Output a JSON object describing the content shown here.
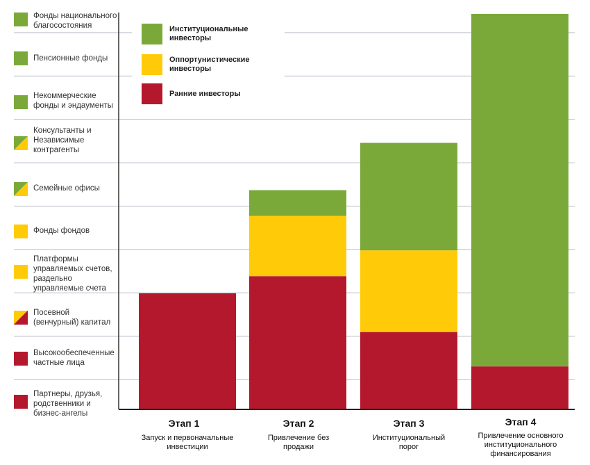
{
  "colors": {
    "green": "#7aa93a",
    "yellow": "#ffcb08",
    "red": "#b4182d",
    "grid": "#b3b8c4"
  },
  "categories_panel": [
    {
      "label": "Фонды национального\nблагосостояния",
      "colors": [
        "green"
      ]
    },
    {
      "label": "Пенсионные фонды",
      "colors": [
        "green"
      ]
    },
    {
      "label": "Некоммерческие\nфонды и эндаументы",
      "colors": [
        "green"
      ]
    },
    {
      "label": "Консультанты и\nНезависимые\nконтрагенты",
      "colors": [
        "green",
        "yellow"
      ]
    },
    {
      "label": "Семейные офисы",
      "colors": [
        "green",
        "yellow"
      ]
    },
    {
      "label": "Фонды фондов",
      "colors": [
        "yellow"
      ]
    },
    {
      "label": "Платформы\nуправляемых счетов,\nраздельно\nуправляемые счета",
      "colors": [
        "yellow"
      ]
    },
    {
      "label": "Посевной\n(венчурный) капитал",
      "colors": [
        "yellow",
        "red"
      ]
    },
    {
      "label": "Высокообеспеченные\nчастные лица",
      "colors": [
        "red"
      ]
    },
    {
      "label": "Партнеры, друзья,\nродственники и\nбизнес-ангелы",
      "colors": [
        "red"
      ]
    }
  ],
  "chart_data": {
    "type": "bar",
    "stacked": true,
    "categories": [
      "Этап 1",
      "Этап 2",
      "Этап 3",
      "Этап 4"
    ],
    "subtitles": [
      "Запуск и первоначальные\nинвестиции",
      "Привлечение без\nпродажи",
      "Институциональный\nпорог",
      "Привлечение основного\nинституционального\nфинансирования"
    ],
    "series": [
      {
        "name": "Ранние инвесторы",
        "color": "red",
        "values": [
          2.7,
          3.1,
          1.8,
          1.0
        ]
      },
      {
        "name": "Оппортунистические инвесторы",
        "color": "yellow",
        "values": [
          0,
          1.4,
          1.9,
          0
        ]
      },
      {
        "name": "Институциональные инвесторы",
        "color": "green",
        "values": [
          0,
          0.6,
          2.5,
          8.2
        ]
      }
    ],
    "ylim": [
      0,
      9.2
    ],
    "grid": true,
    "legend": "top-left"
  }
}
